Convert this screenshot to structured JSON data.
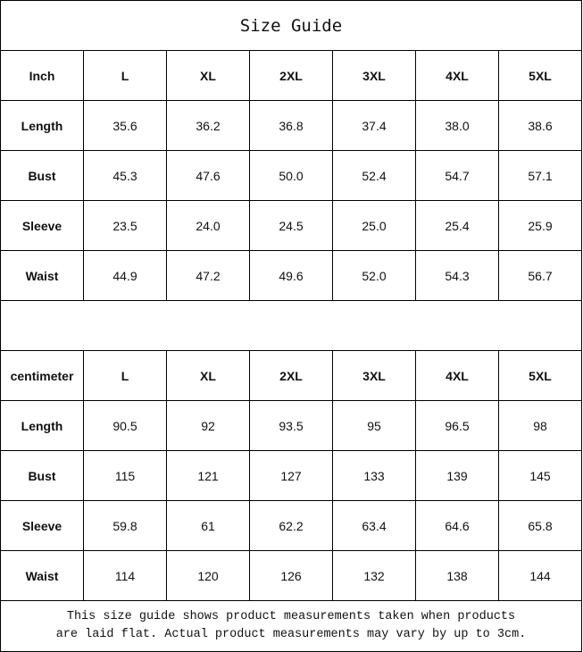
{
  "title": "Size Guide",
  "tables": [
    {
      "unit": "Inch",
      "sizes": [
        "L",
        "XL",
        "2XL",
        "3XL",
        "4XL",
        "5XL"
      ],
      "rows": [
        {
          "label": "Length",
          "values": [
            "35.6",
            "36.2",
            "36.8",
            "37.4",
            "38.0",
            "38.6"
          ]
        },
        {
          "label": "Bust",
          "values": [
            "45.3",
            "47.6",
            "50.0",
            "52.4",
            "54.7",
            "57.1"
          ]
        },
        {
          "label": "Sleeve",
          "values": [
            "23.5",
            "24.0",
            "24.5",
            "25.0",
            "25.4",
            "25.9"
          ]
        },
        {
          "label": "Waist",
          "values": [
            "44.9",
            "47.2",
            "49.6",
            "52.0",
            "54.3",
            "56.7"
          ]
        }
      ]
    },
    {
      "unit": "centimeter",
      "sizes": [
        "L",
        "XL",
        "2XL",
        "3XL",
        "4XL",
        "5XL"
      ],
      "rows": [
        {
          "label": "Length",
          "values": [
            "90.5",
            "92",
            "93.5",
            "95",
            "96.5",
            "98"
          ]
        },
        {
          "label": "Bust",
          "values": [
            "115",
            "121",
            "127",
            "133",
            "139",
            "145"
          ]
        },
        {
          "label": "Sleeve",
          "values": [
            "59.8",
            "61",
            "62.2",
            "63.4",
            "64.6",
            "65.8"
          ]
        },
        {
          "label": "Waist",
          "values": [
            "114",
            "120",
            "126",
            "132",
            "138",
            "144"
          ]
        }
      ]
    }
  ],
  "note": {
    "line1": "This size guide shows product measurements taken when products",
    "line2": "are laid flat. Actual product measurements may vary by up to 3cm."
  }
}
